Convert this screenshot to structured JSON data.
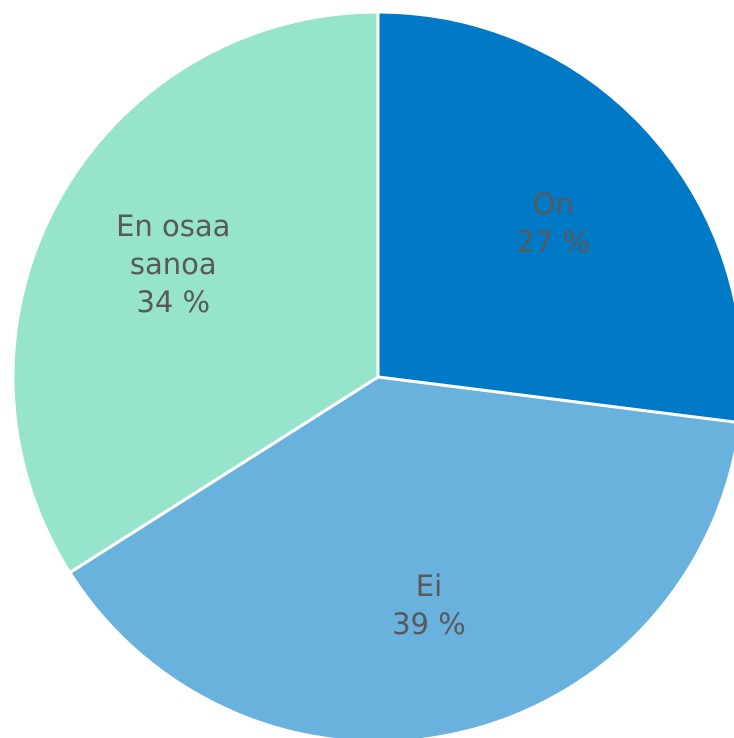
{
  "chart_data": {
    "type": "pie",
    "categories": [
      "On",
      "Ei",
      "En osaa sanoa"
    ],
    "values": [
      27,
      39,
      34
    ],
    "value_labels": [
      "27 %",
      "39 %",
      "34 %"
    ],
    "colors": [
      "#0079c6",
      "#6ab2de",
      "#95e4cb"
    ]
  }
}
